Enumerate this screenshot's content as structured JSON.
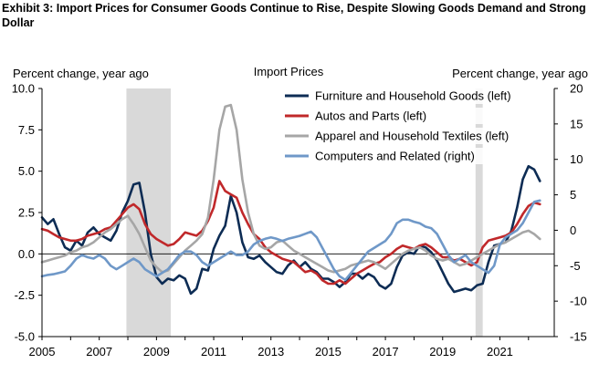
{
  "exhibit_title": "Exhibit 3: Import Prices for Consumer Goods Continue to Rise, Despite Slowing Goods Demand and Strong Dollar",
  "chart_data": {
    "type": "line",
    "title": "Import Prices",
    "ylabel_left": "Percent change, year ago",
    "ylabel_right": "Percent change, year ago",
    "ylim_left": [
      -5.0,
      10.0
    ],
    "ylim_right": [
      -15,
      20
    ],
    "left_ticks": [
      "10.0",
      "7.5",
      "5.0",
      "2.5",
      "0.0",
      "-2.5",
      "-5.0"
    ],
    "right_ticks": [
      "20",
      "15",
      "10",
      "5",
      "0",
      "-5",
      "-10",
      "-15"
    ],
    "x_ticks": [
      "2005",
      "2007",
      "2009",
      "2011",
      "2013",
      "2015",
      "2017",
      "2019",
      "2021"
    ],
    "xlim": [
      2005.0,
      2022.9
    ],
    "recessions": [
      [
        2007.95,
        2009.5
      ],
      [
        2020.15,
        2020.4
      ]
    ],
    "legend_position": "top-right",
    "series": [
      {
        "name": "Furniture and Household Goods (left)",
        "axis": "left",
        "color": "#0d2c54",
        "x": [
          2005.0,
          2005.2,
          2005.4,
          2005.6,
          2005.8,
          2006.0,
          2006.2,
          2006.4,
          2006.6,
          2006.8,
          2007.0,
          2007.2,
          2007.4,
          2007.6,
          2007.8,
          2008.0,
          2008.2,
          2008.4,
          2008.6,
          2008.8,
          2009.0,
          2009.2,
          2009.4,
          2009.6,
          2009.8,
          2010.0,
          2010.2,
          2010.4,
          2010.6,
          2010.8,
          2011.0,
          2011.2,
          2011.4,
          2011.6,
          2011.8,
          2012.0,
          2012.2,
          2012.4,
          2012.6,
          2012.8,
          2013.0,
          2013.2,
          2013.4,
          2013.6,
          2013.8,
          2014.0,
          2014.2,
          2014.4,
          2014.6,
          2014.8,
          2015.0,
          2015.2,
          2015.4,
          2015.6,
          2015.8,
          2016.0,
          2016.2,
          2016.4,
          2016.6,
          2016.8,
          2017.0,
          2017.2,
          2017.4,
          2017.6,
          2017.8,
          2018.0,
          2018.2,
          2018.4,
          2018.6,
          2018.8,
          2019.0,
          2019.2,
          2019.4,
          2019.6,
          2019.8,
          2020.0,
          2020.2,
          2020.4,
          2020.6,
          2020.8,
          2021.0,
          2021.2,
          2021.4,
          2021.6,
          2021.8,
          2022.0,
          2022.2,
          2022.4
        ],
        "y": [
          2.2,
          1.8,
          2.1,
          1.2,
          0.4,
          0.2,
          0.8,
          0.5,
          1.3,
          1.6,
          1.2,
          1.0,
          0.8,
          1.4,
          2.5,
          3.2,
          4.2,
          4.3,
          2.5,
          0.0,
          -1.4,
          -1.8,
          -1.5,
          -1.6,
          -1.3,
          -1.5,
          -2.4,
          -2.1,
          -0.9,
          -1.0,
          0.3,
          1.1,
          1.7,
          3.5,
          2.5,
          0.7,
          -0.2,
          -0.3,
          -0.1,
          -0.5,
          -0.8,
          -1.1,
          -1.2,
          -0.7,
          -0.4,
          -0.8,
          -0.5,
          -0.9,
          -1.1,
          -1.5,
          -1.5,
          -1.7,
          -2.0,
          -1.7,
          -1.2,
          -1.2,
          -1.5,
          -1.2,
          -1.4,
          -1.9,
          -2.1,
          -1.8,
          -0.8,
          -0.1,
          0.1,
          0.0,
          0.5,
          0.4,
          0.1,
          -0.4,
          -1.1,
          -1.8,
          -2.3,
          -2.2,
          -2.1,
          -2.2,
          -1.9,
          -1.8,
          -0.5,
          0.5,
          0.6,
          0.7,
          1.4,
          2.8,
          4.5,
          5.3,
          5.1,
          4.4
        ]
      },
      {
        "name": "Autos and Parts (left)",
        "axis": "left",
        "color": "#c0282a",
        "x": [
          2005.0,
          2005.2,
          2005.4,
          2005.6,
          2005.8,
          2006.0,
          2006.2,
          2006.4,
          2006.6,
          2006.8,
          2007.0,
          2007.2,
          2007.4,
          2007.6,
          2007.8,
          2008.0,
          2008.2,
          2008.4,
          2008.6,
          2008.8,
          2009.0,
          2009.2,
          2009.4,
          2009.6,
          2009.8,
          2010.0,
          2010.2,
          2010.4,
          2010.6,
          2010.8,
          2011.0,
          2011.2,
          2011.4,
          2011.6,
          2011.8,
          2012.0,
          2012.2,
          2012.4,
          2012.6,
          2012.8,
          2013.0,
          2013.2,
          2013.4,
          2013.6,
          2013.8,
          2014.0,
          2014.2,
          2014.4,
          2014.6,
          2014.8,
          2015.0,
          2015.2,
          2015.4,
          2015.6,
          2015.8,
          2016.0,
          2016.2,
          2016.4,
          2016.6,
          2016.8,
          2017.0,
          2017.2,
          2017.4,
          2017.6,
          2017.8,
          2018.0,
          2018.2,
          2018.4,
          2018.6,
          2018.8,
          2019.0,
          2019.2,
          2019.4,
          2019.6,
          2019.8,
          2020.0,
          2020.2,
          2020.4,
          2020.6,
          2020.8,
          2021.0,
          2021.2,
          2021.4,
          2021.6,
          2021.8,
          2022.0,
          2022.2,
          2022.4
        ],
        "y": [
          1.5,
          1.4,
          1.2,
          1.0,
          0.9,
          0.8,
          0.8,
          0.9,
          1.1,
          1.2,
          1.3,
          1.5,
          1.6,
          2.0,
          2.4,
          2.8,
          3.0,
          2.7,
          1.8,
          1.2,
          0.9,
          0.7,
          0.5,
          0.6,
          0.9,
          1.3,
          1.2,
          1.1,
          1.4,
          2.0,
          2.8,
          4.4,
          3.8,
          3.6,
          3.4,
          2.5,
          1.8,
          1.2,
          0.9,
          0.4,
          0.1,
          -0.1,
          -0.3,
          -0.4,
          -0.5,
          -0.8,
          -1.1,
          -1.0,
          -1.2,
          -1.6,
          -1.8,
          -1.8,
          -1.6,
          -1.8,
          -1.5,
          -1.2,
          -1.0,
          -0.8,
          -0.6,
          -0.5,
          -0.2,
          0.0,
          0.3,
          0.5,
          0.4,
          0.3,
          0.5,
          0.6,
          0.4,
          0.1,
          -0.2,
          -0.2,
          -0.4,
          -0.3,
          -0.5,
          -0.7,
          -0.5,
          0.4,
          0.8,
          0.9,
          1.0,
          1.1,
          1.3,
          1.8,
          2.4,
          2.9,
          3.1,
          3.0
        ]
      },
      {
        "name": "Apparel and Household Textiles (left)",
        "axis": "left",
        "color": "#a6a6a6",
        "x": [
          2005.0,
          2005.2,
          2005.4,
          2005.6,
          2005.8,
          2006.0,
          2006.2,
          2006.4,
          2006.6,
          2006.8,
          2007.0,
          2007.2,
          2007.4,
          2007.6,
          2007.8,
          2008.0,
          2008.2,
          2008.4,
          2008.6,
          2008.8,
          2009.0,
          2009.2,
          2009.4,
          2009.6,
          2009.8,
          2010.0,
          2010.2,
          2010.4,
          2010.6,
          2010.8,
          2011.0,
          2011.2,
          2011.4,
          2011.6,
          2011.8,
          2012.0,
          2012.2,
          2012.4,
          2012.6,
          2012.8,
          2013.0,
          2013.2,
          2013.4,
          2013.6,
          2013.8,
          2014.0,
          2014.2,
          2014.4,
          2014.6,
          2014.8,
          2015.0,
          2015.2,
          2015.4,
          2015.6,
          2015.8,
          2016.0,
          2016.2,
          2016.4,
          2016.6,
          2016.8,
          2017.0,
          2017.2,
          2017.4,
          2017.6,
          2017.8,
          2018.0,
          2018.2,
          2018.4,
          2018.6,
          2018.8,
          2019.0,
          2019.2,
          2019.4,
          2019.6,
          2019.8,
          2020.0,
          2020.2,
          2020.4,
          2020.6,
          2020.8,
          2021.0,
          2021.2,
          2021.4,
          2021.6,
          2021.8,
          2022.0,
          2022.2,
          2022.4
        ],
        "y": [
          -0.5,
          -0.4,
          -0.3,
          -0.2,
          -0.1,
          0.1,
          0.2,
          0.4,
          0.5,
          0.7,
          1.0,
          1.3,
          1.5,
          1.8,
          2.1,
          2.3,
          1.8,
          1.2,
          0.4,
          -0.4,
          -0.8,
          -1.1,
          -1.0,
          -0.6,
          -0.2,
          0.2,
          0.5,
          0.8,
          1.2,
          2.2,
          4.5,
          7.5,
          8.9,
          9.0,
          7.5,
          4.5,
          2.5,
          1.2,
          0.5,
          0.3,
          0.4,
          0.7,
          0.8,
          0.5,
          0.2,
          0.0,
          -0.2,
          -0.4,
          -0.6,
          -0.8,
          -1.0,
          -1.1,
          -1.0,
          -0.9,
          -0.7,
          -0.6,
          -0.5,
          -0.4,
          -0.5,
          -0.7,
          -0.9,
          -0.6,
          -0.3,
          0.0,
          0.2,
          0.3,
          0.4,
          0.2,
          -0.1,
          -0.3,
          -0.4,
          -0.3,
          -0.5,
          -0.7,
          -0.6,
          -0.4,
          -0.2,
          0.0,
          0.2,
          0.4,
          0.6,
          0.7,
          0.9,
          1.1,
          1.3,
          1.4,
          1.2,
          0.9
        ]
      },
      {
        "name": "Computers and Related (right)",
        "axis": "right",
        "color": "#6f98c8",
        "x": [
          2005.0,
          2005.2,
          2005.4,
          2005.6,
          2005.8,
          2006.0,
          2006.2,
          2006.4,
          2006.6,
          2006.8,
          2007.0,
          2007.2,
          2007.4,
          2007.6,
          2007.8,
          2008.0,
          2008.2,
          2008.4,
          2008.6,
          2008.8,
          2009.0,
          2009.2,
          2009.4,
          2009.6,
          2009.8,
          2010.0,
          2010.2,
          2010.4,
          2010.6,
          2010.8,
          2011.0,
          2011.2,
          2011.4,
          2011.6,
          2011.8,
          2012.0,
          2012.2,
          2012.4,
          2012.6,
          2012.8,
          2013.0,
          2013.2,
          2013.4,
          2013.6,
          2013.8,
          2014.0,
          2014.2,
          2014.4,
          2014.6,
          2014.8,
          2015.0,
          2015.2,
          2015.4,
          2015.6,
          2015.8,
          2016.0,
          2016.2,
          2016.4,
          2016.6,
          2016.8,
          2017.0,
          2017.2,
          2017.4,
          2017.6,
          2017.8,
          2018.0,
          2018.2,
          2018.4,
          2018.6,
          2018.8,
          2019.0,
          2019.2,
          2019.4,
          2019.6,
          2019.8,
          2020.0,
          2020.2,
          2020.4,
          2020.6,
          2020.8,
          2021.0,
          2021.2,
          2021.4,
          2021.6,
          2021.8,
          2022.0,
          2022.2,
          2022.4
        ],
        "y": [
          -6.5,
          -6.3,
          -6.2,
          -6.0,
          -5.8,
          -5.0,
          -4.0,
          -3.5,
          -3.8,
          -4.0,
          -3.5,
          -4.0,
          -5.0,
          -5.5,
          -5.0,
          -4.5,
          -4.0,
          -4.5,
          -5.5,
          -6.0,
          -6.5,
          -6.0,
          -5.5,
          -4.5,
          -3.5,
          -3.0,
          -3.0,
          -3.5,
          -4.5,
          -5.0,
          -4.5,
          -4.0,
          -3.5,
          -3.0,
          -3.5,
          -3.5,
          -3.0,
          -2.0,
          -1.5,
          -1.2,
          -1.0,
          -1.2,
          -1.5,
          -1.2,
          -1.0,
          -0.8,
          -0.5,
          -0.2,
          -1.0,
          -2.5,
          -4.0,
          -5.5,
          -6.5,
          -7.0,
          -6.0,
          -5.0,
          -4.0,
          -3.0,
          -2.5,
          -2.0,
          -1.5,
          -0.5,
          1.0,
          1.5,
          1.5,
          1.2,
          1.0,
          0.5,
          0.3,
          -0.5,
          -2.0,
          -3.5,
          -4.5,
          -4.0,
          -3.5,
          -4.5,
          -5.0,
          -5.5,
          -6.0,
          -5.0,
          -2.0,
          -1.0,
          -0.5,
          0.0,
          1.0,
          2.5,
          4.0,
          4.2
        ]
      }
    ]
  }
}
